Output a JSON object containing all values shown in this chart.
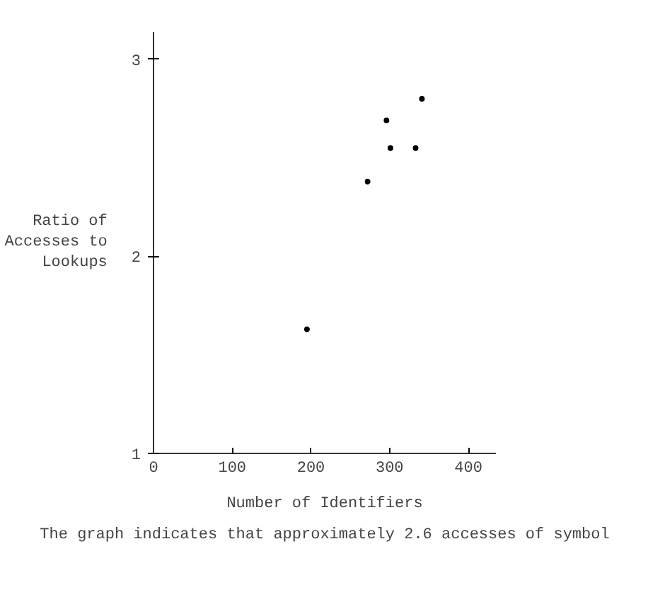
{
  "chart_data": {
    "type": "scatter",
    "xlabel": "Number of Identifiers",
    "ylabel": "Ratio of\nAccesses to\nLookups",
    "annotations": [
      "The graph indicates that approximately 2.6 accesses of symbol"
    ],
    "x": [
      195,
      272,
      296,
      301,
      333,
      341
    ],
    "series": [
      {
        "color": "#000000",
        "values": [
          1.63,
          2.38,
          2.69,
          2.55,
          2.55,
          2.8
        ]
      }
    ],
    "xlim": [
      0,
      435
    ],
    "ylim": [
      1,
      3.14
    ],
    "xticks": [
      0,
      100,
      200,
      300,
      400
    ],
    "yticks": [
      1,
      2,
      3
    ],
    "grid": false,
    "marker": "circle"
  }
}
